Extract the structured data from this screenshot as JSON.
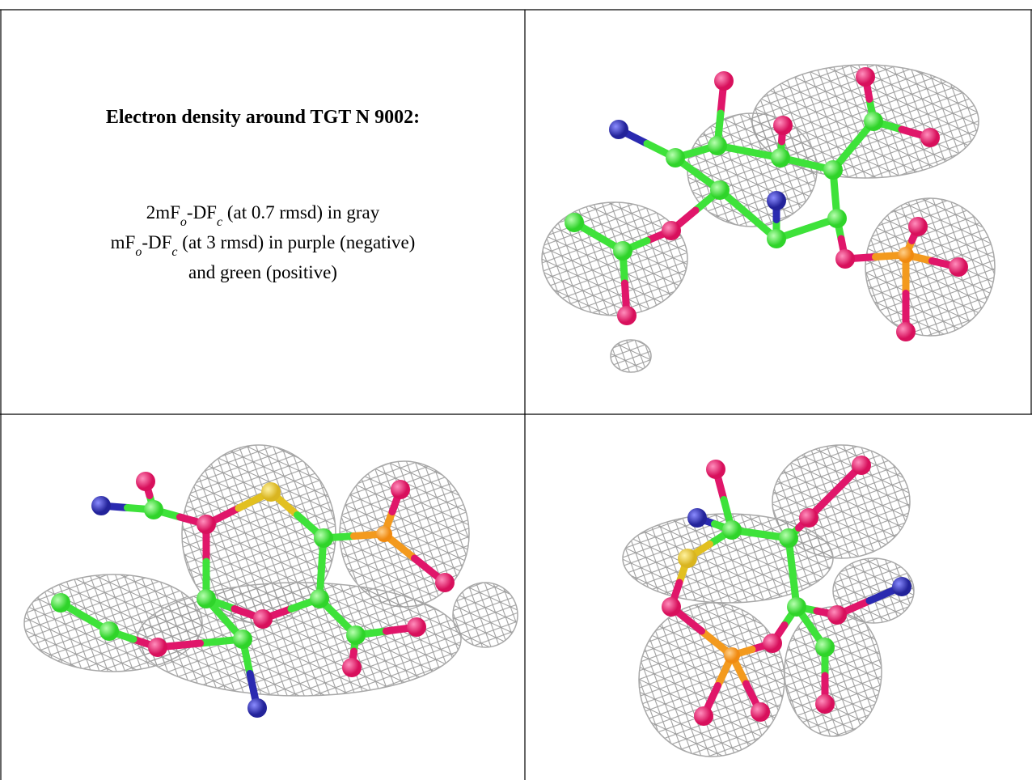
{
  "caption": {
    "title": "Electron density around TGT N 9002:",
    "lines": [
      [
        {
          "text": "2mF"
        },
        {
          "sub": "o"
        },
        {
          "text": "-DF"
        },
        {
          "sub": "c"
        },
        {
          "text": " (at 0.7 rmsd) in gray"
        }
      ],
      [
        {
          "text": "mF"
        },
        {
          "sub": "o"
        },
        {
          "text": "-DF"
        },
        {
          "sub": "c"
        },
        {
          "text": " (at 3 rmsd) in purple (negative)"
        }
      ],
      [
        {
          "text": "and green (positive)"
        }
      ]
    ]
  }
}
